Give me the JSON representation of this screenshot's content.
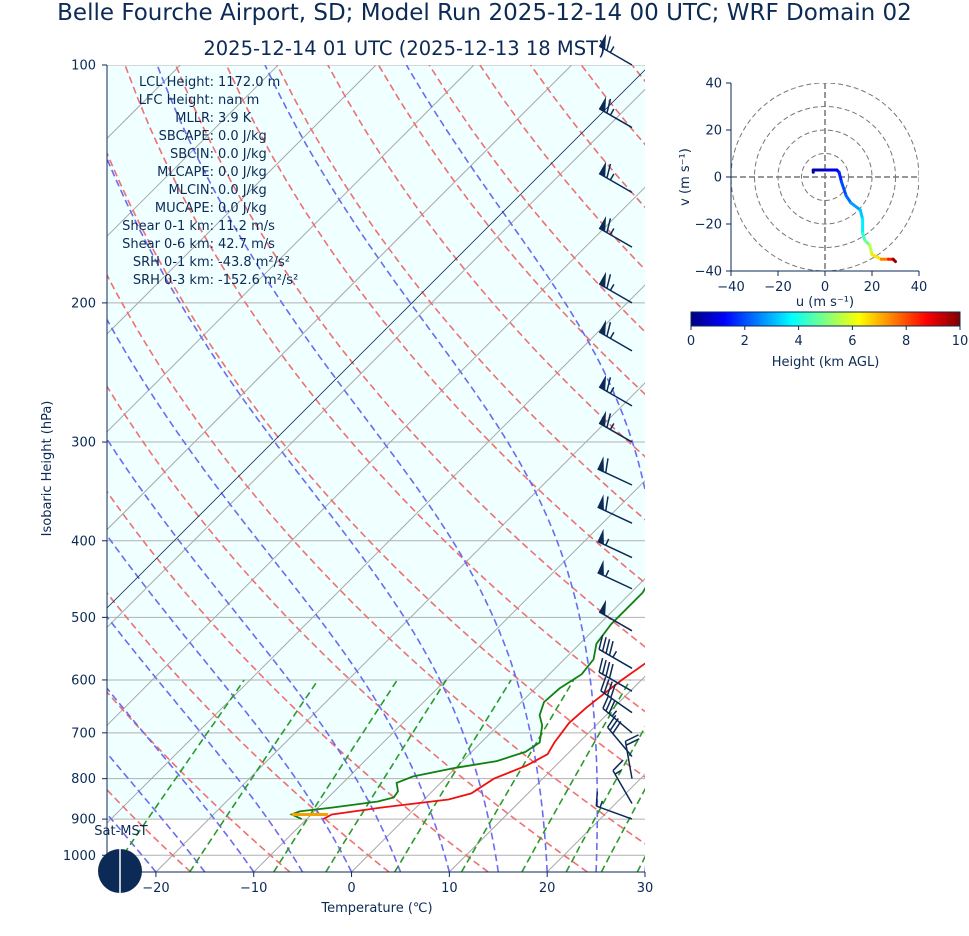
{
  "header": {
    "title": "Belle Fourche Airport, SD; Model Run 2025-12-14 00 UTC; WRF Domain 02",
    "subtitle": "2025-12-14 01 UTC  (2025-12-13 18 MST)"
  },
  "stats": [
    {
      "label": "LCL Height:",
      "value": "1172.0 m"
    },
    {
      "label": "LFC Height:",
      "value": "nan m"
    },
    {
      "label": "MLLR:",
      "value": "3.9 K"
    },
    {
      "label": "SBCAPE:",
      "value": "0.0 J/kg"
    },
    {
      "label": "SBCIN:",
      "value": "0.0 J/kg"
    },
    {
      "label": "MLCAPE:",
      "value": "0.0 J/kg"
    },
    {
      "label": "MLCIN:",
      "value": "0.0 J/kg"
    },
    {
      "label": "MUCAPE:",
      "value": "0.0 J/kg"
    },
    {
      "label": "Shear 0-1 km:",
      "value": "11.2 m/s"
    },
    {
      "label": "Shear 0-6 km:",
      "value": "42.7 m/s"
    },
    {
      "label": "SRH 0-1 km:",
      "value": "-43.8 m²/s²"
    },
    {
      "label": "SRH 0-3 km:",
      "value": "-152.6 m²/s²"
    }
  ],
  "sun_label": "Sat-MST",
  "colors": {
    "temperature": "#ee1111",
    "dewpoint": "#128012",
    "dry_adiabat": "#f07070",
    "moist_adiabat": "#6b6bf0",
    "mixing_ratio": "#2a9a2a",
    "shade": "#f0ffff",
    "ink": "#0b2a55"
  },
  "chart_data": [
    {
      "type": "line",
      "subtype": "skew-T log-p diagram",
      "xlabel": "Temperature (℃)",
      "ylabel": "Isobaric Height (hPa)",
      "xlim": [
        -25,
        30
      ],
      "ylim": [
        1050,
        100
      ],
      "y_scale": "log",
      "x_ticks": [
        "−20",
        "−10",
        "0",
        "10",
        "20",
        "30"
      ],
      "x_tick_values": [
        -20,
        -10,
        0,
        10,
        20,
        30
      ],
      "y_ticks": [
        100,
        200,
        300,
        400,
        500,
        600,
        700,
        800,
        900,
        1000
      ],
      "grid": true,
      "series": [
        {
          "key": "temperature",
          "points": [
            [
              -8.3,
              900
            ],
            [
              -7.9,
              888
            ],
            [
              -3.5,
              870
            ],
            [
              2.5,
              850
            ],
            [
              4.2,
              835
            ],
            [
              5.0,
              800
            ],
            [
              7.0,
              770
            ],
            [
              8.0,
              745
            ],
            [
              7.5,
              720
            ],
            [
              7.0,
              680
            ],
            [
              7.2,
              650
            ],
            [
              7.5,
              630
            ],
            [
              8.0,
              600
            ],
            [
              9.0,
              560
            ],
            [
              9.7,
              540
            ],
            [
              9.7,
              510
            ],
            [
              9.0,
              470
            ],
            [
              7.5,
              430
            ],
            [
              5.5,
              390
            ],
            [
              3.0,
              340
            ],
            [
              0.0,
              290
            ],
            [
              -2.5,
              255
            ],
            [
              -4.5,
              230
            ],
            [
              -5.2,
              215
            ],
            [
              -4.8,
              185
            ],
            [
              -3.5,
              155
            ],
            [
              0.5,
              125
            ],
            [
              4.2,
              100
            ]
          ]
        },
        {
          "key": "dewpoint",
          "points": [
            [
              -10.5,
              900
            ],
            [
              -12,
              888
            ],
            [
              -11.5,
              880
            ],
            [
              -8.5,
              870
            ],
            [
              -4.5,
              855
            ],
            [
              -3.3,
              845
            ],
            [
              -3.5,
              830
            ],
            [
              -4.5,
              810
            ],
            [
              -3.5,
              795
            ],
            [
              0.0,
              775
            ],
            [
              3.5,
              760
            ],
            [
              5.5,
              740
            ],
            [
              6.0,
              720
            ],
            [
              4.5,
              685
            ],
            [
              3.2,
              665
            ],
            [
              2.3,
              640
            ],
            [
              2.5,
              615
            ],
            [
              3.3,
              590
            ],
            [
              3.0,
              565
            ],
            [
              1.7,
              540
            ],
            [
              1.2,
              510
            ],
            [
              1.2,
              465
            ],
            [
              0.0,
              430
            ],
            [
              -3.8,
              395
            ],
            [
              -5.3,
              355
            ],
            [
              -5.4,
              330
            ],
            [
              -6.5,
              300
            ],
            [
              -8.8,
              265
            ],
            [
              -10.2,
              245
            ],
            [
              -10.2,
              225
            ],
            [
              -9.0,
              205
            ],
            [
              -8.6,
              185
            ],
            [
              -8.0,
              160
            ],
            [
              -6.8,
              135
            ],
            [
              -5.0,
              115
            ],
            [
              -4.0,
              100
            ]
          ]
        },
        {
          "key": "parcel_surface",
          "points": [
            [
              -8.3,
              888
            ],
            [
              -12.0,
              888
            ]
          ]
        }
      ],
      "wind_barbs": [
        {
          "pressure": 100,
          "speed_kt": 65,
          "direction_deg": 300
        },
        {
          "pressure": 120,
          "speed_kt": 65,
          "direction_deg": 300
        },
        {
          "pressure": 145,
          "speed_kt": 65,
          "direction_deg": 300
        },
        {
          "pressure": 170,
          "speed_kt": 65,
          "direction_deg": 300
        },
        {
          "pressure": 200,
          "speed_kt": 65,
          "direction_deg": 300
        },
        {
          "pressure": 230,
          "speed_kt": 65,
          "direction_deg": 300
        },
        {
          "pressure": 270,
          "speed_kt": 65,
          "direction_deg": 300
        },
        {
          "pressure": 300,
          "speed_kt": 65,
          "direction_deg": 300
        },
        {
          "pressure": 340,
          "speed_kt": 60,
          "direction_deg": 295
        },
        {
          "pressure": 380,
          "speed_kt": 60,
          "direction_deg": 295
        },
        {
          "pressure": 420,
          "speed_kt": 55,
          "direction_deg": 295
        },
        {
          "pressure": 460,
          "speed_kt": 55,
          "direction_deg": 295
        },
        {
          "pressure": 520,
          "speed_kt": 50,
          "direction_deg": 300
        },
        {
          "pressure": 580,
          "speed_kt": 45,
          "direction_deg": 300
        },
        {
          "pressure": 620,
          "speed_kt": 40,
          "direction_deg": 300
        },
        {
          "pressure": 660,
          "speed_kt": 40,
          "direction_deg": 305
        },
        {
          "pressure": 700,
          "speed_kt": 35,
          "direction_deg": 310
        },
        {
          "pressure": 750,
          "speed_kt": 30,
          "direction_deg": 320
        },
        {
          "pressure": 800,
          "speed_kt": 20,
          "direction_deg": 350
        },
        {
          "pressure": 860,
          "speed_kt": 15,
          "direction_deg": 330
        },
        {
          "pressure": 900,
          "speed_kt": 15,
          "direction_deg": 290
        }
      ]
    },
    {
      "type": "line",
      "subtype": "hodograph",
      "xlabel": "u (m s⁻¹)",
      "ylabel": "v (m s⁻¹)",
      "xlim": [
        -40,
        40
      ],
      "ylim": [
        -40,
        40
      ],
      "x_ticks": [
        -40,
        -20,
        0,
        20,
        40
      ],
      "y_ticks": [
        -40,
        -20,
        0,
        20,
        40
      ],
      "rings": [
        10,
        20,
        30,
        40
      ],
      "points": [
        [
          -5,
          2,
          0
        ],
        [
          -5,
          3,
          0.2
        ],
        [
          0,
          3,
          0.5
        ],
        [
          5,
          3,
          0.9
        ],
        [
          6,
          2,
          1.2
        ],
        [
          7,
          -2,
          1.6
        ],
        [
          9,
          -8,
          2.0
        ],
        [
          11,
          -11,
          2.3
        ],
        [
          15,
          -14,
          2.8
        ],
        [
          16,
          -18,
          3.2
        ],
        [
          16,
          -24,
          3.6
        ],
        [
          17,
          -27,
          4.2
        ],
        [
          19,
          -29,
          4.8
        ],
        [
          20,
          -33,
          5.6
        ],
        [
          24,
          -35,
          6.5
        ],
        [
          27,
          -35,
          7.5
        ],
        [
          29,
          -35,
          8.5
        ],
        [
          30,
          -36,
          9.8
        ]
      ]
    },
    {
      "type": "colorbar",
      "label": "Height (km AGL)",
      "range": [
        0,
        10
      ],
      "ticks": [
        0,
        2,
        4,
        6,
        8,
        10
      ],
      "colormap": "jet"
    }
  ]
}
